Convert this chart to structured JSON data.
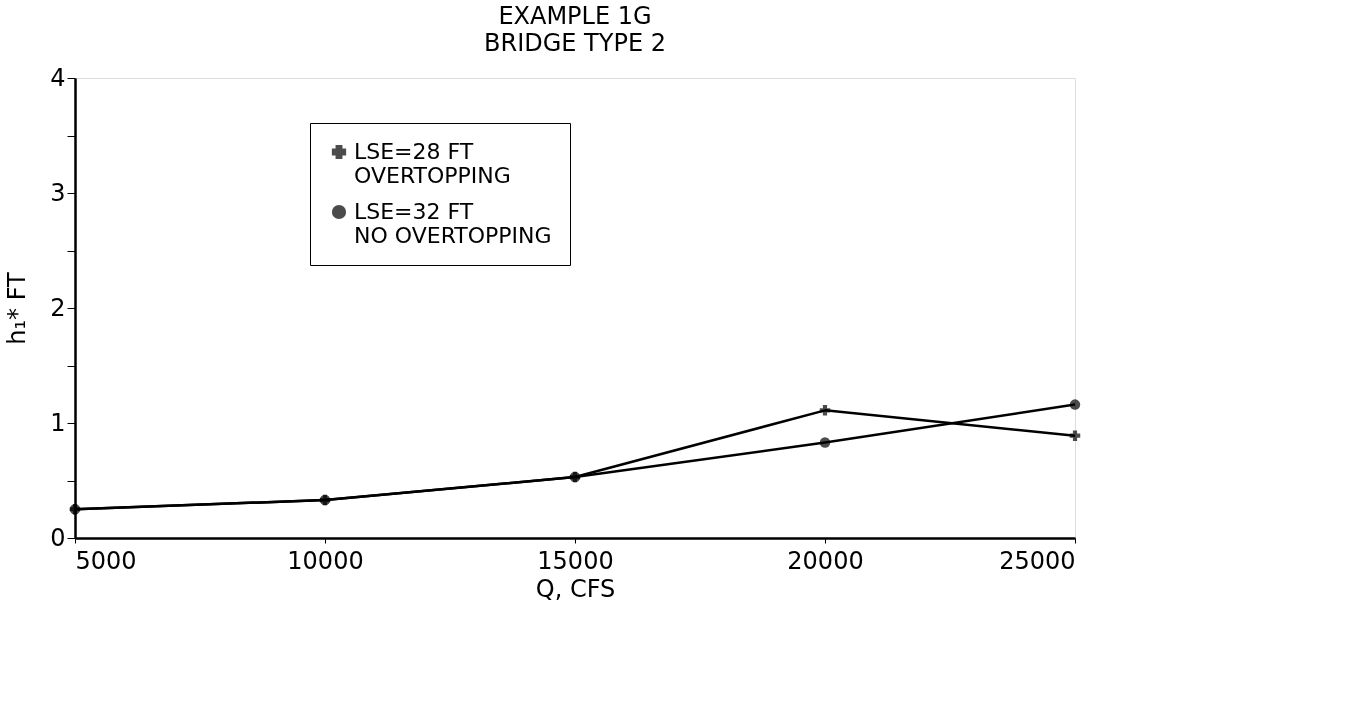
{
  "chart_data": {
    "type": "line",
    "title": "EXAMPLE 1G",
    "subtitle": "BRIDGE TYPE 2",
    "xlabel": "Q, CFS",
    "ylabel": "h₁* FT",
    "x": [
      5000,
      10000,
      15000,
      20000,
      25000
    ],
    "series": [
      {
        "name": "LSE=28 FT\nOVERTOPPING",
        "color": "#000000",
        "marker": "cross",
        "values": [
          0.25,
          0.33,
          0.53,
          1.11,
          0.89
        ]
      },
      {
        "name": "LSE=32 FT\nNO OVERTOPPING",
        "color": "#000000",
        "marker": "circle",
        "values": [
          0.25,
          0.33,
          0.53,
          0.83,
          1.16
        ]
      }
    ],
    "xlim": [
      5000,
      25000
    ],
    "xticks": [
      5000,
      10000,
      15000,
      20000,
      25000
    ],
    "ylim": [
      0,
      4
    ],
    "yticks": [
      0,
      {
        "value": 0.5,
        "label": null
      },
      1,
      {
        "value": 1.5,
        "label": null
      },
      2,
      {
        "value": 2.5,
        "label": null
      },
      3,
      {
        "value": 3.5,
        "label": null
      },
      4
    ],
    "grid": false,
    "legend": "top",
    "line_style": "solid"
  }
}
